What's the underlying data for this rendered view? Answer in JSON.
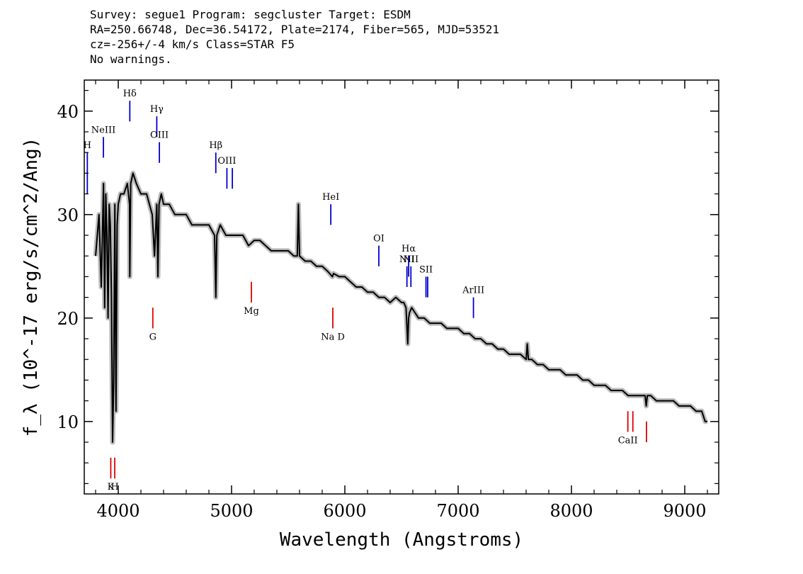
{
  "header": {
    "line1": "Survey: segue1 Program: segcluster Target: ESDM",
    "line2": "RA=250.66748, Dec=36.54172, Plate=2174, Fiber=565, MJD=53521",
    "line3": "cz=-256+/-4 km/s Class=STAR F5",
    "line4": "No warnings."
  },
  "chart_data": {
    "type": "line",
    "xlabel": "Wavelength (Angstroms)",
    "ylabel": "f_λ (10^-17 erg/s/cm^2/Ang)",
    "xlim": [
      3700,
      9300
    ],
    "ylim": [
      3,
      43
    ],
    "x_ticks": [
      4000,
      5000,
      6000,
      7000,
      8000,
      9000
    ],
    "y_ticks": [
      10,
      20,
      30,
      40
    ],
    "colors": {
      "flux": "#000000",
      "noise": "#bbbbbb",
      "emission": "#0000cc",
      "absorption": "#dd0000"
    },
    "series": [
      {
        "kind": "flux",
        "x": [
          3800,
          3830,
          3850,
          3870,
          3880,
          3890,
          3900,
          3910,
          3920,
          3930,
          3940,
          3950,
          3960,
          3970,
          3980,
          3990,
          4000,
          4020,
          4050,
          4080,
          4100,
          4102,
          4110,
          4130,
          4160,
          4200,
          4250,
          4300,
          4320,
          4340,
          4350,
          4360,
          4380,
          4400,
          4450,
          4500,
          4550,
          4600,
          4650,
          4700,
          4750,
          4800,
          4850,
          4861,
          4870,
          4900,
          4950,
          5000,
          5050,
          5100,
          5150,
          5200,
          5250,
          5300,
          5350,
          5400,
          5450,
          5500,
          5550,
          5580,
          5590,
          5600,
          5650,
          5700,
          5750,
          5800,
          5850,
          5890,
          5900,
          5950,
          6000,
          6050,
          6100,
          6150,
          6200,
          6250,
          6300,
          6350,
          6400,
          6450,
          6500,
          6520,
          6540,
          6555,
          6563,
          6570,
          6590,
          6620,
          6650,
          6700,
          6750,
          6800,
          6850,
          6900,
          6950,
          7000,
          7050,
          7100,
          7150,
          7200,
          7250,
          7300,
          7350,
          7400,
          7450,
          7500,
          7550,
          7600,
          7610,
          7620,
          7650,
          7700,
          7750,
          7800,
          7850,
          7900,
          7950,
          8000,
          8050,
          8100,
          8150,
          8200,
          8250,
          8300,
          8350,
          8400,
          8450,
          8500,
          8550,
          8600,
          8650,
          8660,
          8670,
          8700,
          8750,
          8800,
          8850,
          8900,
          8950,
          9000,
          9050,
          9100,
          9150,
          9180,
          9200
        ],
        "y": [
          26,
          30,
          23,
          33,
          21,
          32,
          28,
          20,
          31,
          29,
          22,
          8,
          14,
          31,
          11,
          29,
          31,
          32,
          32,
          33,
          31,
          24,
          33,
          34,
          33,
          32,
          32,
          30,
          26,
          31,
          24,
          31,
          32,
          31,
          31,
          30,
          30,
          30,
          29,
          29,
          29,
          29,
          28,
          22,
          28,
          29,
          28,
          28,
          28,
          28,
          27,
          27.5,
          27.5,
          27,
          26.5,
          26.5,
          26.5,
          26.5,
          26,
          26,
          31,
          26,
          25.5,
          25.5,
          25,
          25,
          24.5,
          24,
          24.3,
          24,
          24,
          23.5,
          23,
          23,
          22.5,
          22.5,
          22,
          22,
          21.5,
          22,
          21.5,
          21.5,
          21,
          17.5,
          20,
          20.5,
          21,
          20.5,
          20,
          20,
          19.5,
          19.5,
          19.5,
          19,
          19,
          19,
          18.5,
          18.5,
          18,
          18,
          17.5,
          17.5,
          17,
          17,
          16.5,
          16.5,
          16.5,
          16,
          17.5,
          16,
          16,
          15.5,
          15.5,
          15,
          15,
          15,
          14.5,
          14.5,
          14.5,
          14,
          14,
          13.5,
          13.5,
          13.5,
          13,
          13,
          13,
          12.5,
          12.5,
          12.5,
          12.5,
          11.5,
          12.5,
          12.5,
          12,
          12,
          12,
          12,
          11.5,
          11.5,
          11.5,
          11,
          11,
          10,
          10
        ]
      }
    ],
    "emission_lines": [
      {
        "label": "H",
        "x": 3727,
        "y_low": 32,
        "y_high": 36
      },
      {
        "label": "NeIII",
        "x": 3869,
        "y_low": 35.5,
        "y_high": 37.5
      },
      {
        "label": "Hδ",
        "x": 4102,
        "y_low": 39,
        "y_high": 41
      },
      {
        "label": "Hγ",
        "x": 4340,
        "y_low": 37.5,
        "y_high": 39.5
      },
      {
        "label": "OIII",
        "x": 4363,
        "y_low": 35,
        "y_high": 37
      },
      {
        "label": "Hβ",
        "x": 4861,
        "y_low": 34,
        "y_high": 36
      },
      {
        "label": "OIII",
        "x": 4959,
        "y_low": 32.5,
        "y_high": 34.5
      },
      {
        "label": "",
        "x": 5007,
        "y_low": 32.5,
        "y_high": 34.5
      },
      {
        "label": "HeI",
        "x": 5876,
        "y_low": 29,
        "y_high": 31
      },
      {
        "label": "OI",
        "x": 6300,
        "y_low": 25,
        "y_high": 27
      },
      {
        "label": "NII",
        "x": 6548,
        "y_low": 23,
        "y_high": 25
      },
      {
        "label": "Hα",
        "x": 6563,
        "y_low": 24,
        "y_high": 26
      },
      {
        "label": "NII",
        "x": 6583,
        "y_low": 23,
        "y_high": 25
      },
      {
        "label": "SII",
        "x": 6716,
        "y_low": 22,
        "y_high": 24
      },
      {
        "label": "",
        "x": 6731,
        "y_low": 22,
        "y_high": 24
      },
      {
        "label": "ArIII",
        "x": 7135,
        "y_low": 20,
        "y_high": 22
      }
    ],
    "absorption_lines": [
      {
        "label": "K",
        "x": 3934,
        "y_low": 4.5,
        "y_high": 6.5
      },
      {
        "label": "H",
        "x": 3969,
        "y_low": 4.5,
        "y_high": 6.5
      },
      {
        "label": "G",
        "x": 4305,
        "y_low": 19,
        "y_high": 21
      },
      {
        "label": "Mg",
        "x": 5175,
        "y_low": 21.5,
        "y_high": 23.5
      },
      {
        "label": "Na D",
        "x": 5894,
        "y_low": 19,
        "y_high": 21
      },
      {
        "label": "CaII",
        "x": 8498,
        "y_low": 9,
        "y_high": 11
      },
      {
        "label": "",
        "x": 8542,
        "y_low": 9,
        "y_high": 11
      },
      {
        "label": "",
        "x": 8662,
        "y_low": 8,
        "y_high": 10
      }
    ]
  }
}
